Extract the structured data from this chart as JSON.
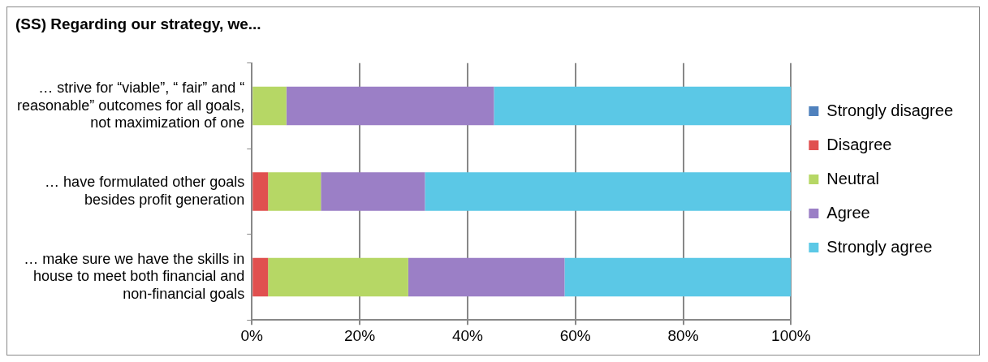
{
  "chart_data": {
    "type": "bar",
    "orientation": "horizontal",
    "stacked": true,
    "title": "(SS) Regarding our strategy, we...",
    "categories": [
      "… strive for “viable”, “ fair” and “ reasonable” outcomes for all goals, not maximization of one",
      "… have formulated other goals besides profit generation",
      "… make sure we have the skills in house to meet both financial and non-financial goals"
    ],
    "series": [
      {
        "name": "Strongly disagree",
        "color": "#4f81bd",
        "values": [
          0,
          0,
          0
        ]
      },
      {
        "name": "Disagree",
        "color": "#e0504f",
        "values": [
          0,
          3,
          3
        ]
      },
      {
        "name": "Neutral",
        "color": "#b6d765",
        "values": [
          6.4,
          9.8,
          26
        ]
      },
      {
        "name": "Agree",
        "color": "#9b7fc6",
        "values": [
          38.5,
          19.3,
          29
        ]
      },
      {
        "name": "Strongly agree",
        "color": "#5bc8e6",
        "values": [
          55.1,
          67.9,
          42
        ]
      }
    ],
    "xlim": [
      0,
      100
    ],
    "xticks": [
      {
        "value": 0,
        "label": "0%"
      },
      {
        "value": 20,
        "label": "20%"
      },
      {
        "value": 40,
        "label": "40%"
      },
      {
        "value": 60,
        "label": "60%"
      },
      {
        "value": 80,
        "label": "80%"
      },
      {
        "value": 100,
        "label": "100%"
      }
    ],
    "grid": "x",
    "legend": "right"
  }
}
